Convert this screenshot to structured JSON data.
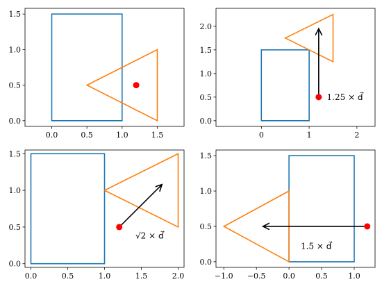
{
  "chart_data": [
    {
      "type": "geometry",
      "xlim": [
        -0.38,
        1.88
      ],
      "ylim": [
        -0.08,
        1.58
      ],
      "xticks": [
        "0.0",
        "0.5",
        "1.0",
        "1.5"
      ],
      "xtick_values": [
        0,
        0.5,
        1,
        1.5
      ],
      "yticks": [
        "0.0",
        "0.5",
        "1.0",
        "1.5"
      ],
      "ytick_values": [
        0,
        0.5,
        1,
        1.5
      ],
      "rectangle": [
        [
          0,
          0
        ],
        [
          1,
          0
        ],
        [
          1,
          1.5
        ],
        [
          0,
          1.5
        ]
      ],
      "triangle": [
        [
          0.5,
          0.5
        ],
        [
          1.5,
          1.0
        ],
        [
          1.5,
          0.0
        ]
      ],
      "point": [
        1.2,
        0.5
      ],
      "arrow": null,
      "annotation": ""
    },
    {
      "type": "geometry",
      "xlim": [
        -0.95,
        2.38
      ],
      "ylim": [
        -0.12,
        2.38
      ],
      "xticks": [
        "0",
        "1",
        "2"
      ],
      "xtick_values": [
        0,
        1,
        2
      ],
      "yticks": [
        "0.0",
        "0.5",
        "1.0",
        "1.5",
        "2.0"
      ],
      "ytick_values": [
        0,
        0.5,
        1,
        1.5,
        2
      ],
      "rectangle": [
        [
          0,
          0
        ],
        [
          1,
          0
        ],
        [
          1,
          1.5
        ],
        [
          0,
          1.5
        ]
      ],
      "triangle": [
        [
          0.5,
          1.75
        ],
        [
          1.5,
          2.25
        ],
        [
          1.5,
          1.25
        ]
      ],
      "point": [
        1.2,
        0.5
      ],
      "arrow": [
        1.2,
        0.5,
        1.2,
        1.95
      ],
      "annotation": "1.25 × d⃗",
      "annotation_anchor": [
        1.37,
        0.5
      ]
    },
    {
      "type": "geometry",
      "xlim": [
        -0.08,
        2.08
      ],
      "ylim": [
        -0.05,
        1.55
      ],
      "xticks": [
        "0.0",
        "0.5",
        "1.0",
        "1.5",
        "2.0"
      ],
      "xtick_values": [
        0,
        0.5,
        1,
        1.5,
        2
      ],
      "yticks": [
        "0.0",
        "0.5",
        "1.0",
        "1.5"
      ],
      "ytick_values": [
        0,
        0.5,
        1,
        1.5
      ],
      "rectangle": [
        [
          0,
          0
        ],
        [
          1,
          0
        ],
        [
          1,
          1.5
        ],
        [
          0,
          1.5
        ]
      ],
      "triangle": [
        [
          1.0,
          1.0
        ],
        [
          2.0,
          1.5
        ],
        [
          2.0,
          0.5
        ]
      ],
      "point": [
        1.2,
        0.5
      ],
      "arrow": [
        1.2,
        0.5,
        1.78,
        1.08
      ],
      "annotation": "√2 × d⃗",
      "annotation_anchor": [
        1.42,
        0.38
      ]
    },
    {
      "type": "geometry",
      "xlim": [
        -1.12,
        1.32
      ],
      "ylim": [
        -0.08,
        1.58
      ],
      "xticks": [
        "−1.0",
        "−0.5",
        "0.0",
        "0.5",
        "1.0"
      ],
      "xtick_values": [
        -1,
        -0.5,
        0,
        0.5,
        1
      ],
      "yticks": [
        "0.0",
        "0.5",
        "1.0",
        "1.5"
      ],
      "ytick_values": [
        0,
        0.5,
        1,
        1.5
      ],
      "rectangle": [
        [
          0,
          0
        ],
        [
          1,
          0
        ],
        [
          1,
          1.5
        ],
        [
          0,
          1.5
        ]
      ],
      "triangle": [
        [
          0.0,
          1.0
        ],
        [
          -1.0,
          0.5
        ],
        [
          0.0,
          0.0
        ]
      ],
      "point": [
        1.2,
        0.5
      ],
      "arrow": [
        1.2,
        0.5,
        -0.4,
        0.5
      ],
      "annotation": "1.5 × d⃗",
      "annotation_anchor": [
        0.18,
        0.22
      ]
    }
  ],
  "colors": {
    "rectangle": "#1f77b4",
    "triangle": "#ff7f0e",
    "point": "#ff0000",
    "arrow": "#000000"
  }
}
